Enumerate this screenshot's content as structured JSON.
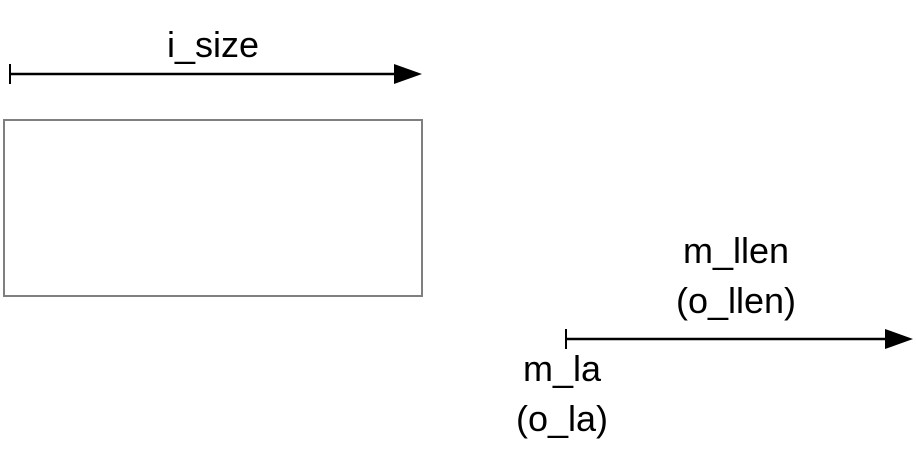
{
  "labels": {
    "i_size": "i_size",
    "m_llen": "m_llen",
    "o_llen": "(o_llen)",
    "m_la": "m_la",
    "o_la": "(o_la)"
  },
  "colors": {
    "arrow": "#000000",
    "box_border": "#7f7f7f",
    "text": "#000000",
    "background": "#ffffff"
  }
}
